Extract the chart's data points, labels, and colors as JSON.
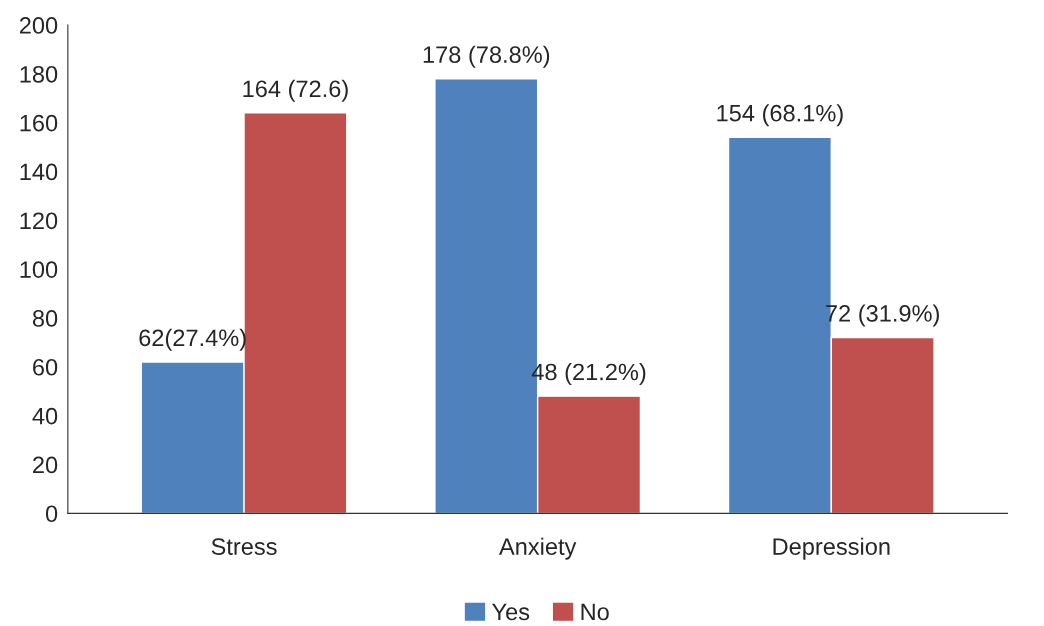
{
  "chart_data": {
    "type": "bar",
    "categories": [
      "Stress",
      "Anxiety",
      "Depression"
    ],
    "series": [
      {
        "name": "Yes",
        "color": "#4f81bd",
        "values": [
          62,
          178,
          154
        ],
        "value_labels": [
          "62(27.4%)",
          "178 (78.8%)",
          "154 (68.1%)"
        ]
      },
      {
        "name": "No",
        "color": "#c0504d",
        "values": [
          164,
          48,
          72
        ],
        "value_labels": [
          "164 (72.6)",
          "48 (21.2%)",
          "72 (31.9%)"
        ]
      }
    ],
    "ylim": [
      0,
      200
    ],
    "yticks": [
      0,
      20,
      40,
      60,
      80,
      100,
      120,
      140,
      160,
      180,
      200
    ],
    "grid": false,
    "legend": "bottom"
  }
}
